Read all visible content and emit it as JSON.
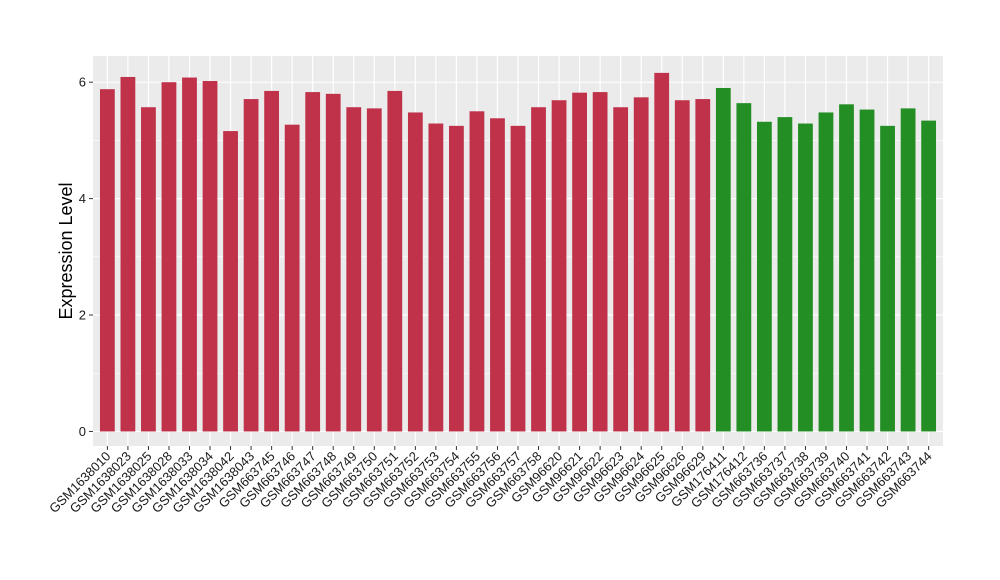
{
  "chart_data": {
    "type": "bar",
    "title": "",
    "xlabel": "",
    "ylabel": "Expression Level",
    "ylim": [
      -0.25,
      6.45
    ],
    "yticks": [
      0,
      2,
      4,
      6
    ],
    "grid": true,
    "legend": "none",
    "colors": {
      "red": "#c0314a",
      "green": "#238e23",
      "panel": "#ebebeb",
      "grid": "#ffffff"
    },
    "categories": [
      "GSM1638010",
      "GSM1638023",
      "GSM1638025",
      "GSM1638028",
      "GSM1638033",
      "GSM1638034",
      "GSM1638042",
      "GSM1638043",
      "GSM663745",
      "GSM663746",
      "GSM663747",
      "GSM663748",
      "GSM663749",
      "GSM663750",
      "GSM663751",
      "GSM663752",
      "GSM663753",
      "GSM663754",
      "GSM663755",
      "GSM663756",
      "GSM663757",
      "GSM663758",
      "GSM96620",
      "GSM96621",
      "GSM96622",
      "GSM96623",
      "GSM96624",
      "GSM96625",
      "GSM96626",
      "GSM96629",
      "GSM176411",
      "GSM176412",
      "GSM663736",
      "GSM663737",
      "GSM663738",
      "GSM663739",
      "GSM663740",
      "GSM663741",
      "GSM663742",
      "GSM663743",
      "GSM663744"
    ],
    "values": [
      5.88,
      6.09,
      5.57,
      6.0,
      6.08,
      6.02,
      5.16,
      5.71,
      5.85,
      5.27,
      5.83,
      5.8,
      5.57,
      5.55,
      5.85,
      5.48,
      5.29,
      5.25,
      5.5,
      5.38,
      5.25,
      5.57,
      5.69,
      5.82,
      5.83,
      5.57,
      5.74,
      6.16,
      5.69,
      5.71,
      5.9,
      5.64,
      5.32,
      5.4,
      5.29,
      5.48,
      5.62,
      5.53,
      5.25,
      5.55,
      5.34
    ],
    "bar_colors": [
      "#c0314a",
      "#c0314a",
      "#c0314a",
      "#c0314a",
      "#c0314a",
      "#c0314a",
      "#c0314a",
      "#c0314a",
      "#c0314a",
      "#c0314a",
      "#c0314a",
      "#c0314a",
      "#c0314a",
      "#c0314a",
      "#c0314a",
      "#c0314a",
      "#c0314a",
      "#c0314a",
      "#c0314a",
      "#c0314a",
      "#c0314a",
      "#c0314a",
      "#c0314a",
      "#c0314a",
      "#c0314a",
      "#c0314a",
      "#c0314a",
      "#c0314a",
      "#c0314a",
      "#c0314a",
      "#238e23",
      "#238e23",
      "#238e23",
      "#238e23",
      "#238e23",
      "#238e23",
      "#238e23",
      "#238e23",
      "#238e23",
      "#238e23",
      "#238e23"
    ]
  }
}
